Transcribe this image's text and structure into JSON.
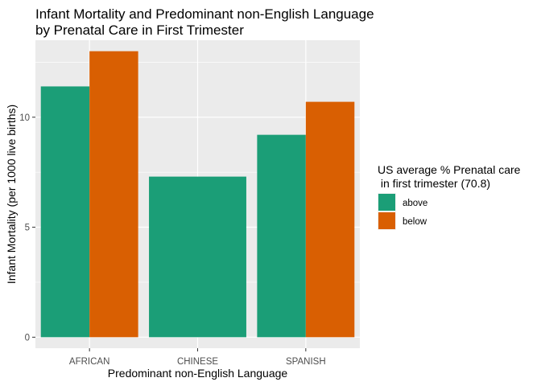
{
  "chart_data": {
    "type": "bar",
    "title_lines": [
      "Infant Mortality and Predominant non-English Language",
      "by Prenatal Care in First Trimester"
    ],
    "xlabel": "Predominant non-English Language",
    "ylabel": "Infant Mortality (per 1000 live births)",
    "categories": [
      "AFRICAN",
      "CHINESE",
      "SPANISH"
    ],
    "series": [
      {
        "name": "above",
        "color": "#1b9e77",
        "values": [
          11.4,
          7.3,
          9.2
        ]
      },
      {
        "name": "below",
        "color": "#d95f02",
        "values": [
          13.0,
          null,
          10.7
        ]
      }
    ],
    "ylim": [
      -0.5,
      13.5
    ],
    "yticks": [
      0,
      5,
      10
    ],
    "grid": true,
    "legend": {
      "title_lines": [
        "US average % Prenatal care",
        " in first trimester (70.8)"
      ],
      "placement": "right"
    }
  }
}
